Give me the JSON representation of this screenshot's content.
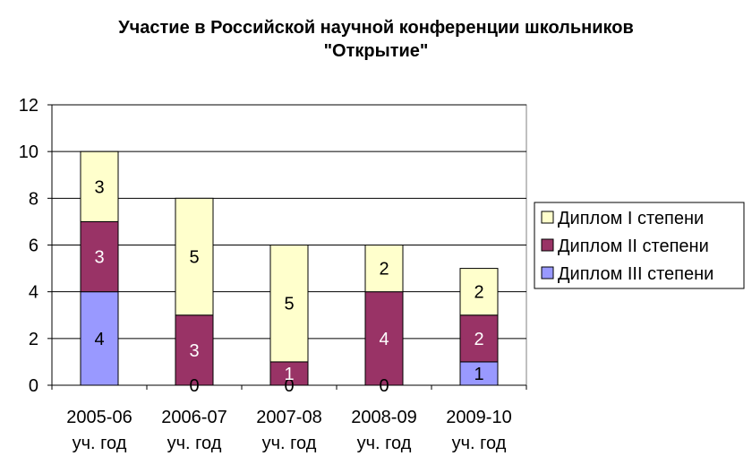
{
  "chart_data": {
    "type": "bar",
    "stacked": true,
    "title_lines": [
      "Участие в Российской научной конференции школьников",
      "\"Открытие\""
    ],
    "xlabel": "",
    "ylabel": "",
    "ylim": [
      0,
      12
    ],
    "yticks": [
      0,
      2,
      4,
      6,
      8,
      10,
      12
    ],
    "grid": true,
    "legend_position": "right",
    "categories": [
      [
        "2005-06",
        "уч. год"
      ],
      [
        "2006-07",
        "уч. год"
      ],
      [
        "2007-08",
        "уч. год"
      ],
      [
        "2008-09",
        "уч. год"
      ],
      [
        "2009-10",
        "уч. год"
      ]
    ],
    "series": [
      {
        "name": "Диплом III степени",
        "color": "#9999ff",
        "values": [
          4,
          0,
          0,
          0,
          1
        ]
      },
      {
        "name": "Диплом II степени",
        "color": "#993366",
        "values": [
          3,
          3,
          1,
          4,
          2
        ]
      },
      {
        "name": "Диплом I степени",
        "color": "#ffffcc",
        "values": [
          3,
          5,
          5,
          2,
          2
        ]
      }
    ],
    "legend_order": [
      "Диплом I степени",
      "Диплом II степени",
      "Диплом III степени"
    ]
  }
}
